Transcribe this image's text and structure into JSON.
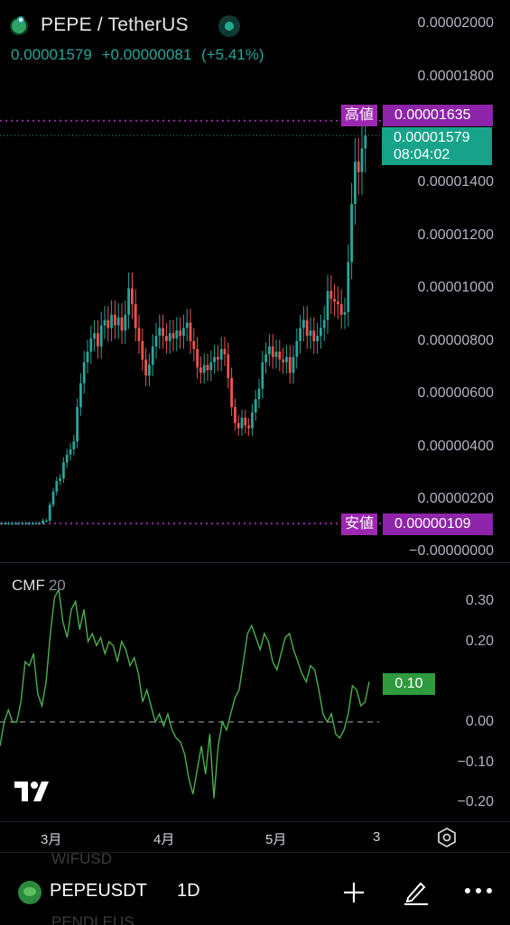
{
  "header": {
    "title": "PEPE / TetherUS",
    "last_price": "0.00001579",
    "change_abs": "+0.00000081",
    "change_pct": "(+5.41%)"
  },
  "price_axis": {
    "ticks": [
      "0.00002000",
      "0.00001800",
      "0.00001400",
      "0.00001200",
      "0.00001000",
      "0.00000800",
      "0.00000600",
      "0.00000400",
      "0.00000200",
      "−0.00000000"
    ]
  },
  "markers": {
    "high_label": "高値",
    "high_value": "0.00001635",
    "low_label": "安値",
    "low_value": "0.00000109",
    "current_price": "0.00001579",
    "countdown": "08:04:02"
  },
  "cmf": {
    "label": "CMF",
    "length": "20",
    "value": "0.10",
    "ticks": [
      "0.30",
      "0.20",
      "0.10",
      "0.00",
      "−0.10",
      "−0.20"
    ]
  },
  "time_axis": {
    "labels": [
      "3月",
      "4月",
      "5月",
      "3"
    ]
  },
  "bottom_bar": {
    "symbol": "PEPEUSDT",
    "interval": "1D",
    "ghost_top": "WIFUSD",
    "ghost_bottom": "PENDLEUS"
  },
  "colors": {
    "up": "#26a69a",
    "down": "#ef5350",
    "marker": "#9c27b0",
    "cmf_line": "#4caf50"
  },
  "chart_data": [
    {
      "type": "candlestick",
      "title": "PEPE / TetherUS",
      "ylim": [
        0,
        2.1e-05
      ],
      "high": 1.635e-05,
      "low": 1.09e-06,
      "last": 1.579e-05,
      "close": [
        1.1e-06,
        1.1e-06,
        1.1e-06,
        1.1e-06,
        1.1e-06,
        1.1e-06,
        1.1e-06,
        1.1e-06,
        1.1e-06,
        1.1e-06,
        1.1e-06,
        1.1e-06,
        1.2e-06,
        1.2e-06,
        1.8e-06,
        2.3e-06,
        2.7e-06,
        2.8e-06,
        3.4e-06,
        3.7e-06,
        3.9e-06,
        4.2e-06,
        5.5e-06,
        6.4e-06,
        7.2e-06,
        7.6e-06,
        8.1e-06,
        8.3e-06,
        7.8e-06,
        8.6e-06,
        8.8e-06,
        8.5e-06,
        9e-06,
        8.6e-06,
        8.9e-06,
        8.4e-06,
        9e-06,
        1e-05,
        9.4e-06,
        8.5e-06,
        8e-06,
        7.3e-06,
        6.7e-06,
        7.1e-06,
        7.8e-06,
        8.2e-06,
        8.5e-06,
        8.2e-06,
        8e-06,
        8.3e-06,
        8.1e-06,
        8.4e-06,
        8.2e-06,
        8.5e-06,
        8.7e-06,
        8e-06,
        7.7e-06,
        7e-06,
        6.8e-06,
        7.1e-06,
        6.9e-06,
        7.2e-06,
        7.4e-06,
        7.3e-06,
        7.7e-06,
        7.5e-06,
        6.6e-06,
        5.5e-06,
        4.9e-06,
        4.7e-06,
        5.1e-06,
        4.8e-06,
        4.7e-06,
        5.3e-06,
        5.8e-06,
        6.2e-06,
        7.2e-06,
        7.5e-06,
        7.8e-06,
        7.4e-06,
        7.6e-06,
        7.3e-06,
        7.2e-06,
        7.4e-06,
        6.8e-06,
        7.4e-06,
        8e-06,
        8.5e-06,
        8.8e-06,
        8.2e-06,
        8.4e-06,
        8e-06,
        8.2e-06,
        8.5e-06,
        8.8e-06,
        9.9e-06,
        9.6e-06,
        9.5e-06,
        9.4e-06,
        9e-06,
        9.1e-06,
        1.1e-05,
        1.32e-05,
        1.48e-05,
        1.44e-05,
        1.53e-05,
        1.58e-05
      ]
    },
    {
      "type": "line",
      "title": "CMF 20",
      "ylim": [
        -0.22,
        0.34
      ],
      "zero_line": 0,
      "values": [
        -0.06,
        0.0,
        0.03,
        0.0,
        0.0,
        0.05,
        0.15,
        0.14,
        0.17,
        0.07,
        0.04,
        0.1,
        0.22,
        0.31,
        0.33,
        0.25,
        0.21,
        0.28,
        0.3,
        0.23,
        0.28,
        0.2,
        0.22,
        0.19,
        0.21,
        0.17,
        0.2,
        0.19,
        0.15,
        0.2,
        0.18,
        0.14,
        0.16,
        0.12,
        0.05,
        0.08,
        0.04,
        0.0,
        0.02,
        -0.01,
        0.02,
        -0.02,
        -0.04,
        -0.05,
        -0.08,
        -0.14,
        -0.18,
        -0.12,
        -0.06,
        -0.13,
        -0.03,
        -0.19,
        -0.06,
        0.0,
        -0.02,
        0.02,
        0.06,
        0.08,
        0.15,
        0.22,
        0.24,
        0.21,
        0.18,
        0.22,
        0.2,
        0.15,
        0.13,
        0.17,
        0.21,
        0.22,
        0.18,
        0.15,
        0.12,
        0.1,
        0.14,
        0.13,
        0.08,
        0.02,
        0.0,
        0.02,
        -0.03,
        -0.04,
        -0.02,
        0.02,
        0.09,
        0.08,
        0.04,
        0.05,
        0.1
      ]
    }
  ]
}
